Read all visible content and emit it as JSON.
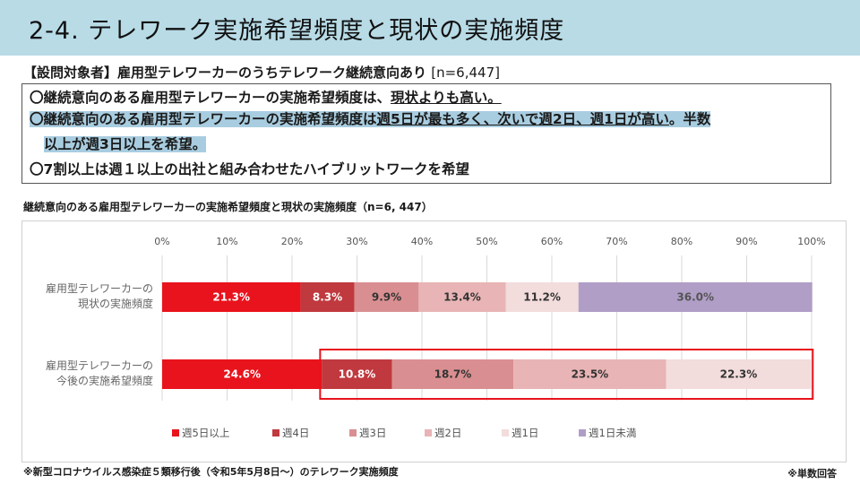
{
  "header": {
    "title": "2-4. テレワーク実施希望頻度と現状の実施頻度"
  },
  "target": {
    "label": "【設問対象者】雇用型テレワーカーのうちテレワーク継続意向あり",
    "n": "[n=6,447]"
  },
  "summary": {
    "p1_a": "〇継続意向のある雇用型テレワーカーの実施希望頻度は、",
    "p1_b": "現状よりも高い。",
    "p2_a": "〇継続意向のある雇用型テレワーカーの実施希望頻度は",
    "p2_b": "週5日が最も多く、次いで週2日、週1日が高い",
    "p2_c": "。半数",
    "p3": "以上が週3日以上を希望。",
    "p4": "〇7割以上は週１以上の出社と組み合わせたハイブリットワークを希望"
  },
  "chart_title": "継続意向のある雇用型テレワーカーの実施希望頻度と現状の実施頻度（n=6, 447）",
  "chart_data": {
    "type": "bar",
    "orientation": "horizontal",
    "stacked": true,
    "categories": [
      [
        "雇用型テレワーカーの",
        "現状の実施頻度"
      ],
      [
        "雇用型テレワーカーの",
        "今後の実施希望頻度"
      ]
    ],
    "xlim": [
      0,
      100
    ],
    "ticks": [
      "0%",
      "10%",
      "20%",
      "30%",
      "40%",
      "50%",
      "60%",
      "70%",
      "80%",
      "90%",
      "100%"
    ],
    "grid": true,
    "legend_position": "bottom",
    "series": [
      {
        "name": "週5日以上",
        "color": "#e8131c",
        "label_color": "#ffffff",
        "values": [
          21.3,
          24.6
        ]
      },
      {
        "name": "週4日",
        "color": "#c0393e",
        "label_color": "#ffffff",
        "values": [
          8.3,
          10.8
        ]
      },
      {
        "name": "週3日",
        "color": "#d98f91",
        "label_color": "#333333",
        "values": [
          9.9,
          18.7
        ]
      },
      {
        "name": "週2日",
        "color": "#e8b4b5",
        "label_color": "#333333",
        "values": [
          13.4,
          23.5
        ]
      },
      {
        "name": "週1日",
        "color": "#f3dcdc",
        "label_color": "#333333",
        "values": [
          11.2,
          22.3
        ]
      },
      {
        "name": "週1日未満",
        "color": "#b09ec7",
        "label_color": "#555555",
        "values": [
          36.0,
          0
        ]
      }
    ],
    "value_labels": [
      [
        "21.3%",
        "8.3%",
        "9.9%",
        "13.4%",
        "11.2%",
        "36.0%"
      ],
      [
        "24.6%",
        "10.8%",
        "18.7%",
        "23.5%",
        "22.3%",
        ""
      ]
    ],
    "highlight": {
      "row": 1,
      "from_series": 1,
      "to_series": 4,
      "color": "#e8131c"
    }
  },
  "footnote": "※新型コロナウイルス感染症５類移行後（令和5年5月8日～）のテレワーク実施頻度",
  "footnote_right": "※単数回答"
}
